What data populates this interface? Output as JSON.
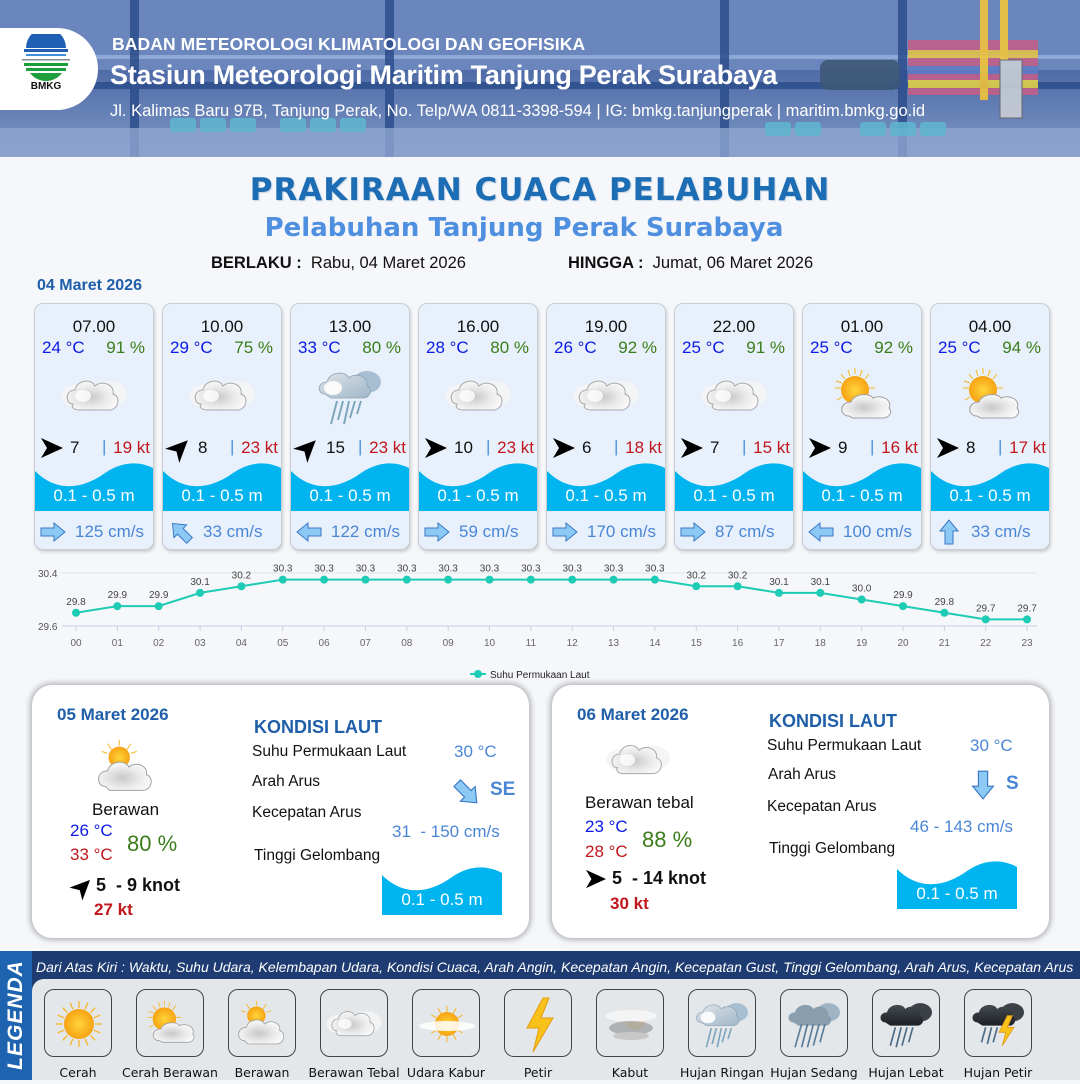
{
  "header": {
    "agency": "BADAN METEOROLOGI KLIMATOLOGI DAN GEOFISIKA",
    "station": "Stasiun Meteorologi Maritim Tanjung Perak Surabaya",
    "contact": "Jl. Kalimas Baru 97B, Tanjung Perak, No. Telp/WA 0811-3398-594 | IG: bmkg.tanjungperak | maritim.bmkg.go.id",
    "logo_text": "BMKG"
  },
  "title": "PRAKIRAAN CUACA PELABUHAN",
  "subtitle": "Pelabuhan Tanjung Perak Surabaya",
  "validity": {
    "from_label": "BERLAKU :",
    "from_value": "Rabu, 04 Maret 2026",
    "to_label": "HINGGA :",
    "to_value": "Jumat, 06 Maret 2026"
  },
  "day1_date": "04 Maret 2026",
  "hourly": [
    {
      "time": "07.00",
      "temp": "24 °C",
      "rh": "91 %",
      "weather": "berawan-tebal",
      "wind_dir": "E",
      "wind_speed": "7",
      "gust": "19 kt",
      "wave": "0.1 - 0.5 m",
      "current_dir": "E",
      "current_speed": "125 cm/s"
    },
    {
      "time": "10.00",
      "temp": "29 °C",
      "rh": "75 %",
      "weather": "berawan-tebal",
      "wind_dir": "NE",
      "wind_speed": "8",
      "gust": "23 kt",
      "wave": "0.1 - 0.5 m",
      "current_dir": "NW",
      "current_speed": "33 cm/s"
    },
    {
      "time": "13.00",
      "temp": "33 °C",
      "rh": "80 %",
      "weather": "hujan-ringan",
      "wind_dir": "NE",
      "wind_speed": "15",
      "gust": "23 kt",
      "wave": "0.1 - 0.5 m",
      "current_dir": "W",
      "current_speed": "122 cm/s"
    },
    {
      "time": "16.00",
      "temp": "28 °C",
      "rh": "80 %",
      "weather": "berawan-tebal",
      "wind_dir": "E",
      "wind_speed": "10",
      "gust": "23 kt",
      "wave": "0.1 - 0.5 m",
      "current_dir": "E",
      "current_speed": "59 cm/s"
    },
    {
      "time": "19.00",
      "temp": "26 °C",
      "rh": "92 %",
      "weather": "berawan-tebal",
      "wind_dir": "E",
      "wind_speed": "6",
      "gust": "18 kt",
      "wave": "0.1 - 0.5 m",
      "current_dir": "E",
      "current_speed": "170 cm/s"
    },
    {
      "time": "22.00",
      "temp": "25 °C",
      "rh": "91 %",
      "weather": "berawan-tebal",
      "wind_dir": "E",
      "wind_speed": "7",
      "gust": "15 kt",
      "wave": "0.1 - 0.5 m",
      "current_dir": "E",
      "current_speed": "87 cm/s"
    },
    {
      "time": "01.00",
      "temp": "25 °C",
      "rh": "92 %",
      "weather": "cerah-berawan",
      "wind_dir": "E",
      "wind_speed": "9",
      "gust": "16 kt",
      "wave": "0.1 - 0.5 m",
      "current_dir": "W",
      "current_speed": "100 cm/s"
    },
    {
      "time": "04.00",
      "temp": "25 °C",
      "rh": "94 %",
      "weather": "cerah-berawan",
      "wind_dir": "E",
      "wind_speed": "8",
      "gust": "17 kt",
      "wave": "0.1 - 0.5 m",
      "current_dir": "N",
      "current_speed": "33 cm/s"
    }
  ],
  "chart_data": {
    "type": "line",
    "title": "",
    "x": [
      "00",
      "01",
      "02",
      "03",
      "04",
      "05",
      "06",
      "07",
      "08",
      "09",
      "10",
      "11",
      "12",
      "13",
      "14",
      "15",
      "16",
      "17",
      "18",
      "19",
      "20",
      "21",
      "22",
      "23"
    ],
    "series": [
      {
        "name": "Suhu Permukaan Laut",
        "color": "#1ecbb5",
        "values": [
          29.8,
          29.9,
          29.9,
          30.1,
          30.2,
          30.3,
          30.3,
          30.3,
          30.3,
          30.3,
          30.3,
          30.3,
          30.3,
          30.3,
          30.3,
          30.2,
          30.2,
          30.1,
          30.1,
          30.0,
          29.9,
          29.8,
          29.7,
          29.7
        ]
      }
    ],
    "y_ticks": [
      "30.4",
      "29.6"
    ],
    "ylim": [
      29.6,
      30.4
    ],
    "xlabel": "",
    "ylabel": "",
    "grid": true,
    "legend_position": "bottom"
  },
  "daily": [
    {
      "date": "05 Maret 2026",
      "weather": "berawan",
      "condition": "Berawan",
      "tmin": "26 °C",
      "tmax": "33 °C",
      "rh": "80 %",
      "wind_dir": "NE",
      "wind": "5  - 9 knot",
      "gust": "27 kt",
      "sea_title": "KONDISI LAUT",
      "sst_label": "Suhu Permukaan Laut",
      "sst": "30 °C",
      "current_dir_label": "Arah Arus",
      "current_dir": "SE",
      "current_speed_label": "Kecepatan Arus",
      "current_speed": "31  - 150 cm/s",
      "wave_label": "Tinggi Gelombang",
      "wave": "0.1 - 0.5 m"
    },
    {
      "date": "06 Maret 2026",
      "weather": "berawan-tebal",
      "condition": "Berawan tebal",
      "tmin": "23 °C",
      "tmax": "28 °C",
      "rh": "88 %",
      "wind_dir": "E",
      "wind": "5  - 14 knot",
      "gust": "30 kt",
      "sea_title": "KONDISI LAUT",
      "sst_label": "Suhu Permukaan Laut",
      "sst": "30 °C",
      "current_dir_label": "Arah Arus",
      "current_dir": "S",
      "current_speed_label": "Kecepatan Arus",
      "current_speed": "46 - 143 cm/s",
      "wave_label": "Tinggi Gelombang",
      "wave": "0.1 - 0.5 m"
    }
  ],
  "legend": {
    "title": "LEGENDA",
    "description": "Dari Atas Kiri : Waktu, Suhu Udara, Kelembapan Udara, Kondisi Cuaca, Arah Angin, Kecepatan Angin, Kecepatan Gust, Tinggi Gelombang, Arah Arus, Kecepatan Arus",
    "items": [
      {
        "label": "Cerah",
        "icon": "cerah"
      },
      {
        "label": "Cerah Berawan",
        "icon": "cerah-berawan"
      },
      {
        "label": "Berawan",
        "icon": "berawan"
      },
      {
        "label": "Berawan Tebal",
        "icon": "berawan-tebal"
      },
      {
        "label": "Udara Kabur",
        "icon": "udara-kabur"
      },
      {
        "label": "Petir",
        "icon": "petir"
      },
      {
        "label": "Kabut",
        "icon": "kabut"
      },
      {
        "label": "Hujan Ringan",
        "icon": "hujan-ringan"
      },
      {
        "label": "Hujan Sedang",
        "icon": "hujan-sedang"
      },
      {
        "label": "Hujan Lebat",
        "icon": "hujan-lebat"
      },
      {
        "label": "Hujan Petir",
        "icon": "hujan-petir"
      }
    ]
  },
  "colors": {
    "title_blue": "#1d6db5",
    "subtitle_blue": "#4f8fe0",
    "temp_blue": "#0a18e8",
    "rh_green": "#3a7d1a",
    "gust_red": "#c0161c",
    "wave_cyan": "#00b4f0",
    "current_blue": "#4a86d6",
    "legend_navy": "#1e3c72",
    "chart_teal": "#1ecbb5"
  }
}
